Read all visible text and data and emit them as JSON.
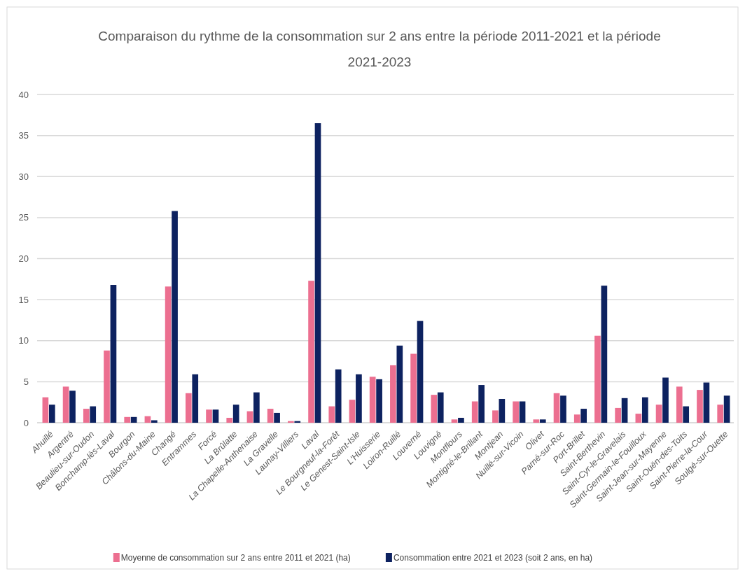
{
  "chart_data": {
    "type": "bar",
    "title": "Comparaison du rythme de la consommation sur 2 ans entre la période 2011-2021 et la période 2021-2023",
    "categories": [
      "Ahuillé",
      "Argentré",
      "Beaulieu-sur-Oudon",
      "Bonchamp-lès-Laval",
      "Bourgon",
      "Châlons-du-Maine",
      "Changé",
      "Entrammes",
      "Forcé",
      "La Brûlatte",
      "La Chapelle-Anthenaise",
      "La Gravelle",
      "Launay-Villiers",
      "Laval",
      "Le Bourgneuf-la-Forêt",
      "Le Genest-Saint-Isle",
      "L'Huisserie",
      "Loiron-Ruillé",
      "Louverné",
      "Louvigné",
      "Montflours",
      "Montigné-le-Brillant",
      "Montjean",
      "Nuillé-sur-Vicoin",
      "Olivet",
      "Parné-sur-Roc",
      "Port-Brillet",
      "Saint-Berthevin",
      "Saint-Cyr-le-Gravelais",
      "Saint-Germain-le-Fouilloux",
      "Saint-Jean-sur-Mayenne",
      "Saint-Ouën-des-Toits",
      "Saint-Pierre-la-Cour",
      "Soulgé-sur-Ouette"
    ],
    "series": [
      {
        "name": "Moyenne de consommation sur 2 ans entre 2011 et 2021 (ha)",
        "color": "#ec6f90",
        "values": [
          3.1,
          4.4,
          1.7,
          8.8,
          0.7,
          0.8,
          16.6,
          3.6,
          1.6,
          0.6,
          1.4,
          1.7,
          0.2,
          17.3,
          2.0,
          2.8,
          5.6,
          7.0,
          8.4,
          3.4,
          0.4,
          2.6,
          1.5,
          2.6,
          0.4,
          3.6,
          1.0,
          10.6,
          1.8,
          1.1,
          2.2,
          4.4,
          4.0,
          2.2
        ]
      },
      {
        "name": "Consommation entre 2021 et 2023 (soit 2 ans, en ha)",
        "color": "#0d2260",
        "values": [
          2.2,
          3.9,
          2.0,
          16.8,
          0.7,
          0.3,
          25.8,
          5.9,
          1.6,
          2.2,
          3.7,
          1.2,
          0.2,
          36.5,
          6.5,
          5.9,
          5.3,
          9.4,
          12.4,
          3.7,
          0.6,
          4.6,
          2.9,
          2.6,
          0.4,
          3.3,
          1.7,
          16.7,
          3.0,
          3.1,
          5.5,
          2.0,
          4.9,
          3.3
        ]
      }
    ],
    "ylim": [
      0,
      40
    ],
    "yticks": [
      0,
      5,
      10,
      15,
      20,
      25,
      30,
      35,
      40
    ],
    "grid": "y",
    "legend": "bottom"
  }
}
